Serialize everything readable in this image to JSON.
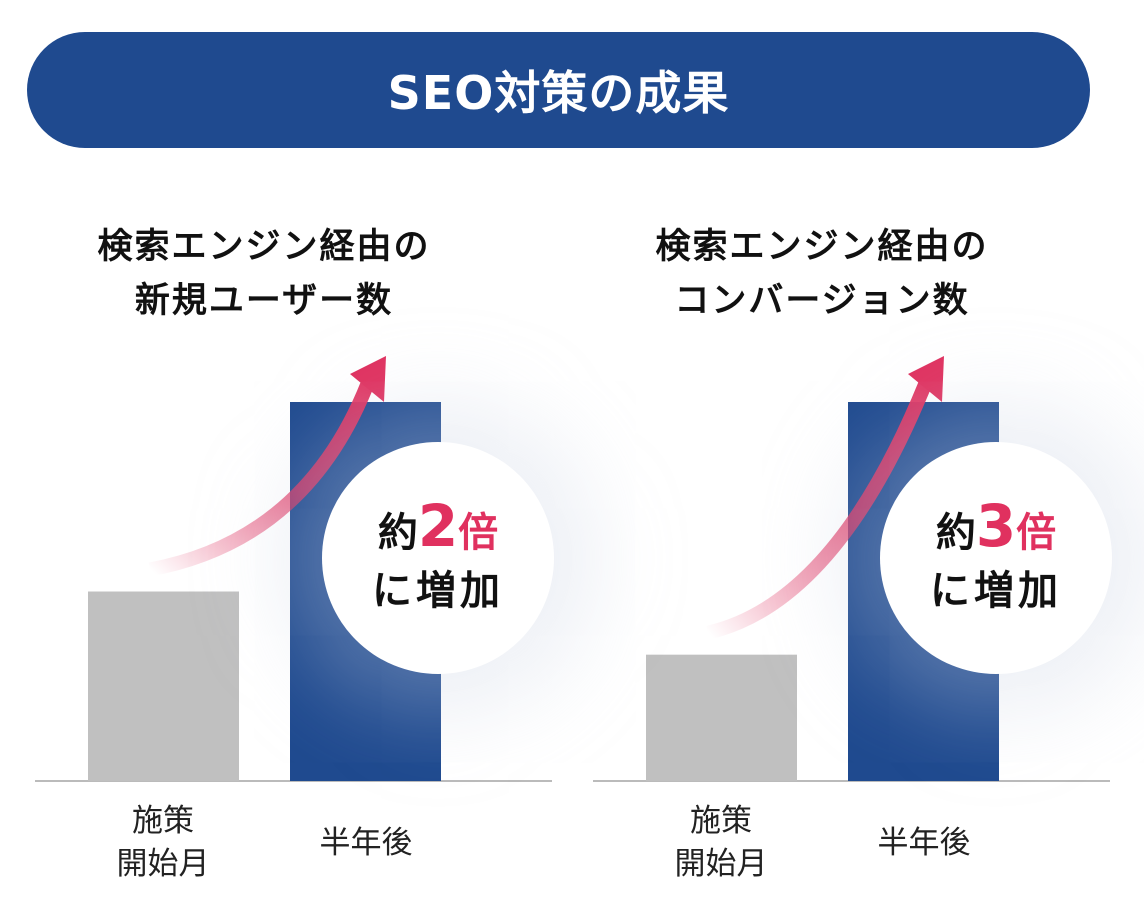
{
  "title": "SEO対策の成果",
  "colors": {
    "banner": "#1f4a8f",
    "bar_after": "#1f4a8f",
    "bar_before": "#c0c0c0",
    "accent": "#e0315f"
  },
  "chart_data": [
    {
      "type": "bar",
      "title_lines": [
        "検索エンジン経由の",
        "新規ユーザー数"
      ],
      "categories": [
        "施策\n開始月",
        "半年後"
      ],
      "values": [
        1,
        2
      ],
      "unit": "relative",
      "badge": {
        "prefix": "約",
        "multiplier": "2",
        "suffix": "倍",
        "line2": "に増加"
      }
    },
    {
      "type": "bar",
      "title_lines": [
        "検索エンジン経由の",
        "コンバージョン数"
      ],
      "categories": [
        "施策\n開始月",
        "半年後"
      ],
      "values": [
        1,
        3
      ],
      "unit": "relative",
      "badge": {
        "prefix": "約",
        "multiplier": "3",
        "suffix": "倍",
        "line2": "に増加"
      }
    }
  ]
}
